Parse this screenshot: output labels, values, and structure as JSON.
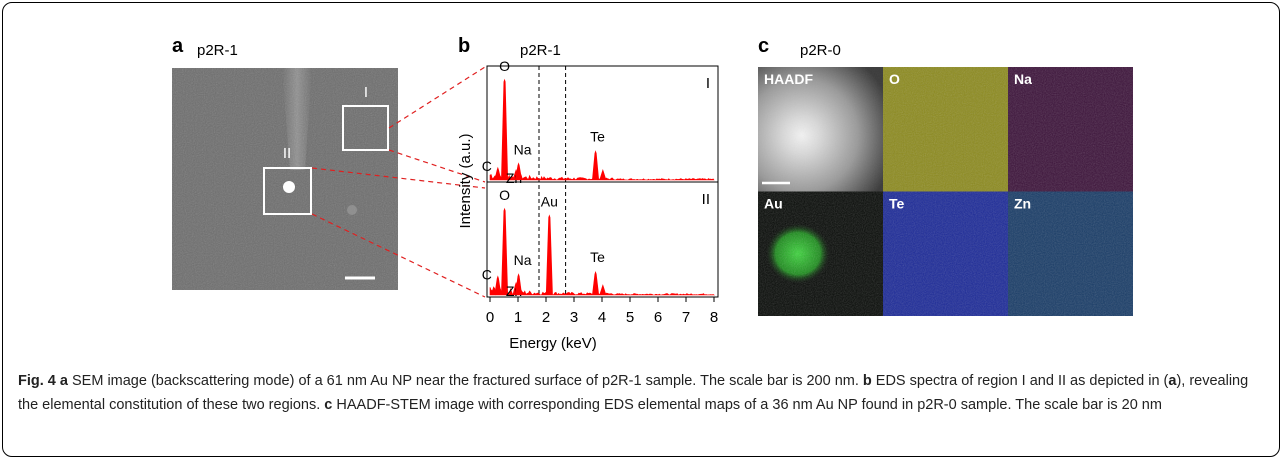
{
  "panel_a": {
    "letter": "a",
    "sample": "p2R-1",
    "regions": [
      "I",
      "II"
    ]
  },
  "chart_data": {
    "type": "spectrum",
    "letter": "b",
    "sample": "p2R-1",
    "x_label": "Energy (keV)",
    "y_label": "Intensity (a.u.)",
    "xlim": [
      0,
      8
    ],
    "xticks": [
      0,
      1,
      2,
      3,
      4,
      5,
      6,
      7,
      8
    ],
    "ylim": [
      0,
      1
    ],
    "markers": [
      1.75,
      2.7
    ],
    "color": "#ff0000",
    "series": [
      {
        "name": "I",
        "x": [
          0.28,
          0.52,
          0.93,
          1.02,
          3.77,
          4.03
        ],
        "values": [
          0.12,
          0.92,
          0.1,
          0.16,
          0.27,
          0.1
        ],
        "labels": [
          "C",
          "O",
          "Zn",
          "Na",
          "Te",
          null
        ]
      },
      {
        "name": "II",
        "x": [
          0.28,
          0.52,
          0.93,
          1.02,
          2.12,
          3.77,
          4.03
        ],
        "values": [
          0.18,
          0.8,
          0.12,
          0.2,
          0.74,
          0.22,
          0.1
        ],
        "labels": [
          "C",
          "O",
          "Zn",
          "Na",
          "Au",
          "Te",
          null
        ]
      }
    ]
  },
  "panel_c": {
    "letter": "c",
    "sample": "p2R-0",
    "maps": [
      {
        "label": "HAADF",
        "color": "#8a8a8a"
      },
      {
        "label": "O",
        "color": "#8c8a1c"
      },
      {
        "label": "Na",
        "color": "#3a1038"
      },
      {
        "label": "Au",
        "color": "#050805"
      },
      {
        "label": "Te",
        "color": "#1a2898"
      },
      {
        "label": "Zn",
        "color": "#163a66"
      }
    ]
  },
  "caption": [
    {
      "text": "Fig. 4 a",
      "bold": true
    },
    {
      "text": " SEM image (backscattering mode) of a 61 nm Au NP near the fractured surface of p2R-1 sample. The scale bar is 200 nm. ",
      "bold": false
    },
    {
      "text": "b",
      "bold": true
    },
    {
      "text": " EDS spectra of region I and II as depicted in (",
      "bold": false
    },
    {
      "text": "a",
      "bold": true
    },
    {
      "text": "), revealing the elemental constitution of these two regions. ",
      "bold": false
    },
    {
      "text": "c",
      "bold": true
    },
    {
      "text": " HAADF-STEM image with corresponding EDS elemental maps of a 36 nm Au NP found in p2R-0 sample. The scale bar is 20 nm",
      "bold": false
    }
  ]
}
